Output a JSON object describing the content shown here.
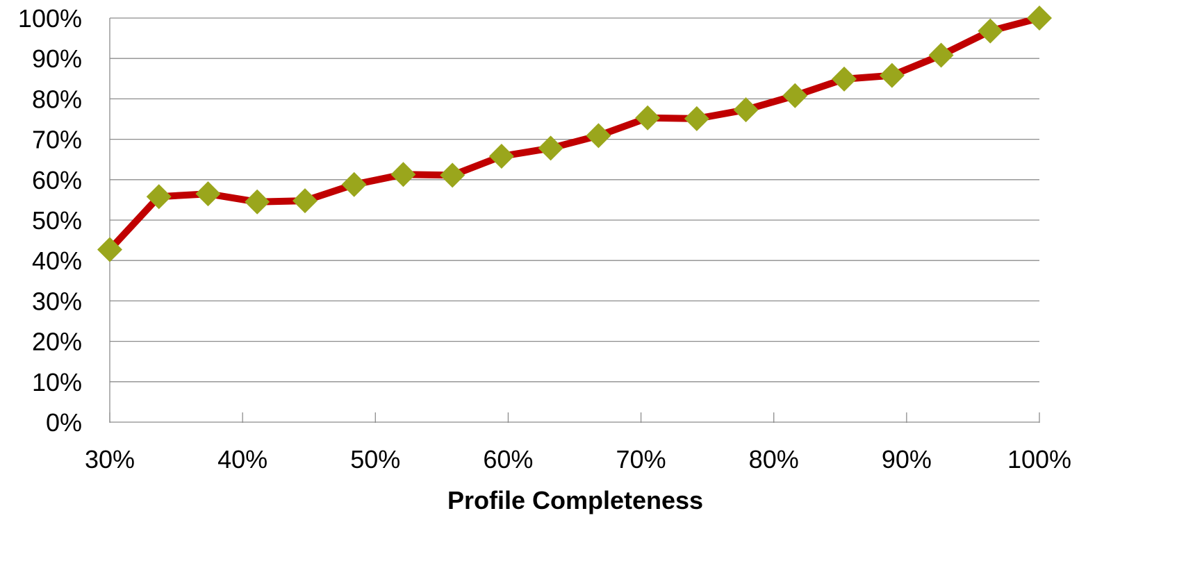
{
  "chart_data": {
    "type": "line",
    "xlabel": "Profile Completeness",
    "ylabel": "",
    "xlim": [
      30,
      100
    ],
    "ylim": [
      0,
      100
    ],
    "grid": "horizontal",
    "x_ticks": [
      {
        "value": 30,
        "label": "30%"
      },
      {
        "value": 40,
        "label": "40%"
      },
      {
        "value": 50,
        "label": "50%"
      },
      {
        "value": 60,
        "label": "60%"
      },
      {
        "value": 70,
        "label": "70%"
      },
      {
        "value": 80,
        "label": "80%"
      },
      {
        "value": 90,
        "label": "90%"
      },
      {
        "value": 100,
        "label": "100%"
      }
    ],
    "y_ticks": [
      {
        "value": 0,
        "label": "0%"
      },
      {
        "value": 10,
        "label": "10%"
      },
      {
        "value": 20,
        "label": "20%"
      },
      {
        "value": 30,
        "label": "30%"
      },
      {
        "value": 40,
        "label": "40%"
      },
      {
        "value": 50,
        "label": "50%"
      },
      {
        "value": 60,
        "label": "60%"
      },
      {
        "value": 70,
        "label": "70%"
      },
      {
        "value": 80,
        "label": "80%"
      },
      {
        "value": 90,
        "label": "90%"
      },
      {
        "value": 100,
        "label": "100%"
      }
    ],
    "series": [
      {
        "line_color": "#c00000",
        "marker_color": "#9aa61c",
        "marker": "diamond",
        "points": [
          {
            "x": 30.0,
            "y": 42.7
          },
          {
            "x": 33.7,
            "y": 55.8
          },
          {
            "x": 37.4,
            "y": 56.5
          },
          {
            "x": 41.1,
            "y": 54.5
          },
          {
            "x": 44.7,
            "y": 54.8
          },
          {
            "x": 48.4,
            "y": 58.8
          },
          {
            "x": 52.1,
            "y": 61.3
          },
          {
            "x": 55.8,
            "y": 61.1
          },
          {
            "x": 59.5,
            "y": 65.8
          },
          {
            "x": 63.2,
            "y": 67.8
          },
          {
            "x": 66.8,
            "y": 70.9
          },
          {
            "x": 70.5,
            "y": 75.3
          },
          {
            "x": 74.2,
            "y": 75.1
          },
          {
            "x": 77.9,
            "y": 77.3
          },
          {
            "x": 81.6,
            "y": 80.8
          },
          {
            "x": 85.3,
            "y": 84.9
          },
          {
            "x": 88.9,
            "y": 85.8
          },
          {
            "x": 92.6,
            "y": 90.8
          },
          {
            "x": 96.3,
            "y": 96.8
          },
          {
            "x": 100.0,
            "y": 100.0
          }
        ]
      }
    ]
  }
}
